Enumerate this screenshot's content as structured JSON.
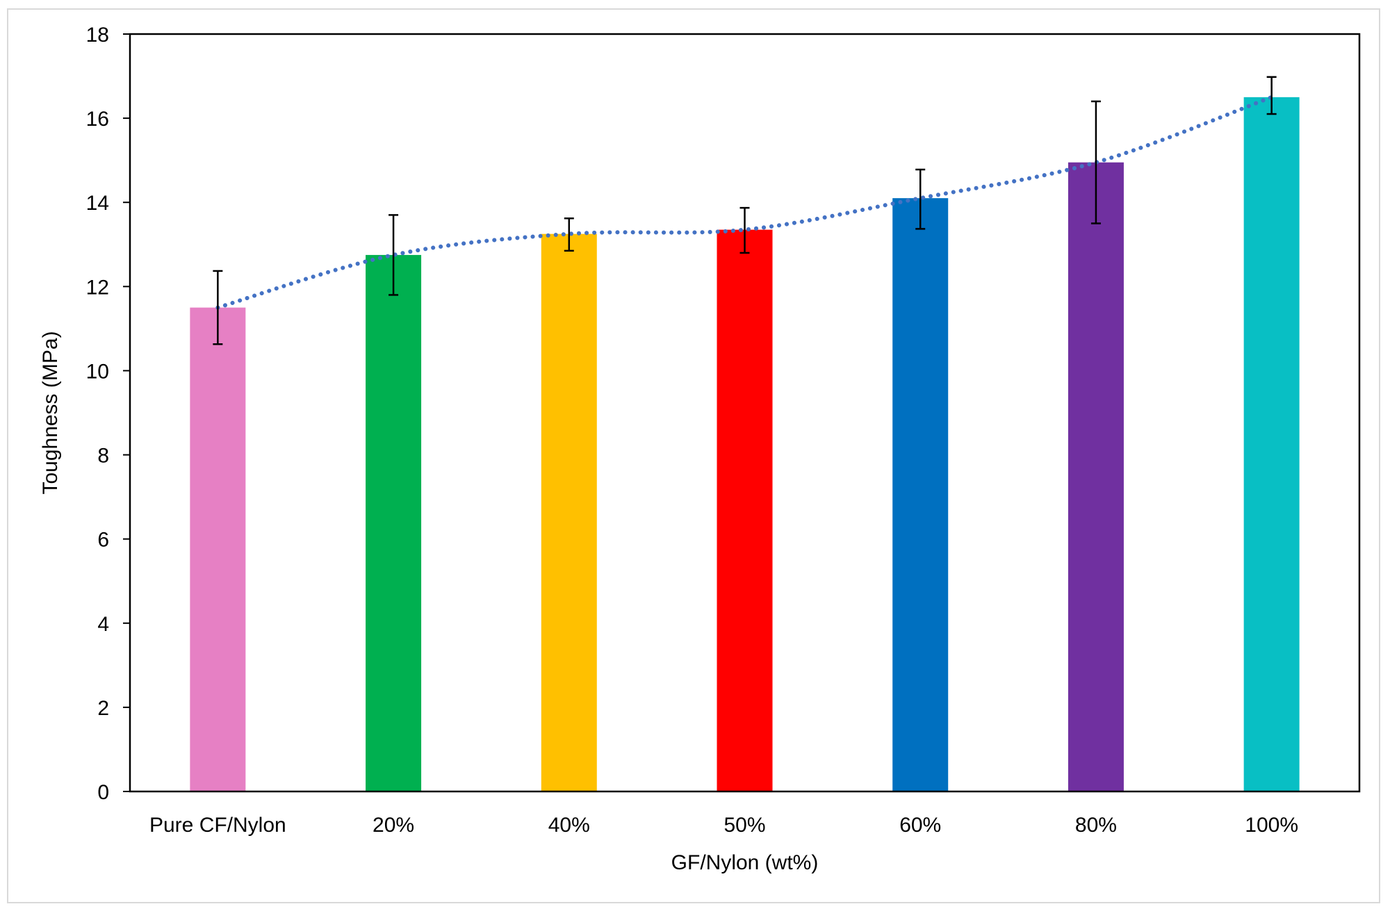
{
  "chart_data": {
    "type": "bar",
    "title": "",
    "xlabel": "GF/Nylon (wt%)",
    "ylabel": "Toughness (MPa)",
    "ylim": [
      0,
      18
    ],
    "yticks": [
      0,
      2,
      4,
      6,
      8,
      10,
      12,
      14,
      16,
      18
    ],
    "categories": [
      "Pure CF/Nylon",
      "20%",
      "40%",
      "50%",
      "60%",
      "80%",
      "100%"
    ],
    "values": [
      11.5,
      12.75,
      13.25,
      13.35,
      14.1,
      14.95,
      16.5
    ],
    "error_low": [
      10.63,
      11.8,
      12.85,
      12.8,
      13.37,
      13.5,
      16.1
    ],
    "error_high": [
      12.37,
      13.7,
      13.62,
      13.87,
      14.78,
      16.4,
      16.98
    ],
    "bar_colors": [
      "#e680c4",
      "#00b050",
      "#ffc000",
      "#ff0000",
      "#0070c0",
      "#7030a0",
      "#08bfc4"
    ],
    "trendline": {
      "style": "dotted",
      "color": "#4472c4"
    },
    "grid": false,
    "legend": "none"
  }
}
